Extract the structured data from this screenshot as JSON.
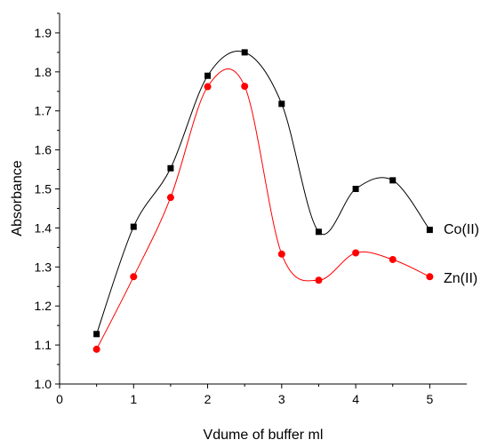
{
  "chart_data": {
    "type": "line",
    "title": "",
    "xlabel": "Vdume of buffer ml",
    "ylabel": "Absorbance",
    "xlim": [
      0,
      5.5
    ],
    "ylim": [
      1.0,
      1.95
    ],
    "xticks": [
      0,
      1,
      2,
      3,
      4,
      5
    ],
    "yticks": [
      1.0,
      1.1,
      1.2,
      1.3,
      1.4,
      1.5,
      1.6,
      1.7,
      1.8,
      1.9
    ],
    "xtick_labels": [
      "0",
      "1",
      "2",
      "3",
      "4",
      "5"
    ],
    "ytick_labels": [
      "1.0",
      "1.1",
      "1.2",
      "1.3",
      "1.4",
      "1.5",
      "1.6",
      "1.7",
      "1.8",
      "1.9"
    ],
    "grid": false,
    "legend": "none",
    "x": [
      0.5,
      1.0,
      1.5,
      2.0,
      2.5,
      3.0,
      3.5,
      4.0,
      4.5,
      5.0
    ],
    "series": [
      {
        "name": "Co(II)",
        "label": "Co(II)",
        "marker": "square",
        "color": "#000000",
        "values": [
          1.128,
          1.403,
          1.553,
          1.79,
          1.85,
          1.718,
          1.39,
          1.5,
          1.522,
          1.395
        ]
      },
      {
        "name": "Zn(II)",
        "label": "Zn(II)",
        "marker": "circle",
        "color": "#ff0000",
        "values": [
          1.089,
          1.275,
          1.478,
          1.762,
          1.763,
          1.333,
          1.266,
          1.336,
          1.319,
          1.275
        ]
      }
    ]
  }
}
